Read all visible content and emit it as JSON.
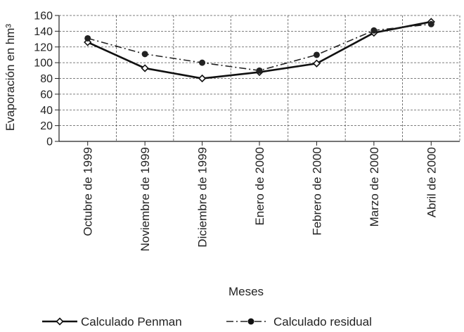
{
  "chart_data": {
    "type": "line",
    "title": "",
    "ylabel": "Evaporación en hm³",
    "xlabel": "Meses",
    "ylim": [
      0,
      160
    ],
    "y_ticks": [
      0,
      20,
      40,
      60,
      80,
      100,
      120,
      140,
      160
    ],
    "grid": true,
    "legend_position": "bottom",
    "categories": [
      "Octubre de 1999",
      "Noviembre de 1999",
      "Diciembre de 1999",
      "Enero de 2000",
      "Febrero de 2000",
      "Marzo de 2000",
      "Abril de 2000"
    ],
    "series": [
      {
        "name": "Calculado Penman",
        "values": [
          126,
          93,
          80,
          88,
          99,
          138,
          152
        ],
        "color": "#111111",
        "line_style": "solid",
        "marker": "open-diamond"
      },
      {
        "name": "Calculado residual",
        "values": [
          131,
          111,
          100,
          90,
          110,
          141,
          149
        ],
        "color": "#222222",
        "line_style": "dash-dot",
        "marker": "filled-circle"
      }
    ]
  }
}
